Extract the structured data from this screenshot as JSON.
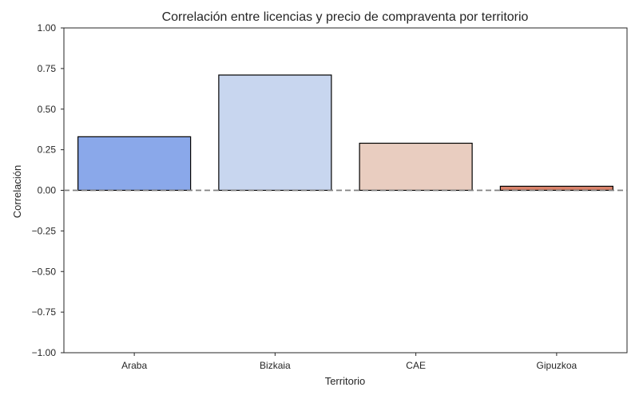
{
  "chart_data": {
    "type": "bar",
    "title": "Correlación entre licencias y precio de compraventa por territorio",
    "xlabel": "Territorio",
    "ylabel": "Correlación",
    "categories": [
      "Araba",
      "Bizkaia",
      "CAE",
      "Gipuzkoa"
    ],
    "values": [
      0.33,
      0.71,
      0.29,
      0.025
    ],
    "colors": [
      "#8aa8ea",
      "#c8d6ef",
      "#e9cdc0",
      "#d9826b"
    ],
    "ylim": [
      -1.0,
      1.0
    ],
    "yticks": [
      1.0,
      0.75,
      0.5,
      0.25,
      0.0,
      -0.25,
      -0.5,
      -0.75,
      -1.0
    ],
    "ytick_labels": [
      "1.00",
      "0.75",
      "0.50",
      "0.25",
      "0.00",
      "−0.25",
      "−0.50",
      "−0.75",
      "−1.00"
    ],
    "reference_line": 0.0,
    "grid": false
  }
}
